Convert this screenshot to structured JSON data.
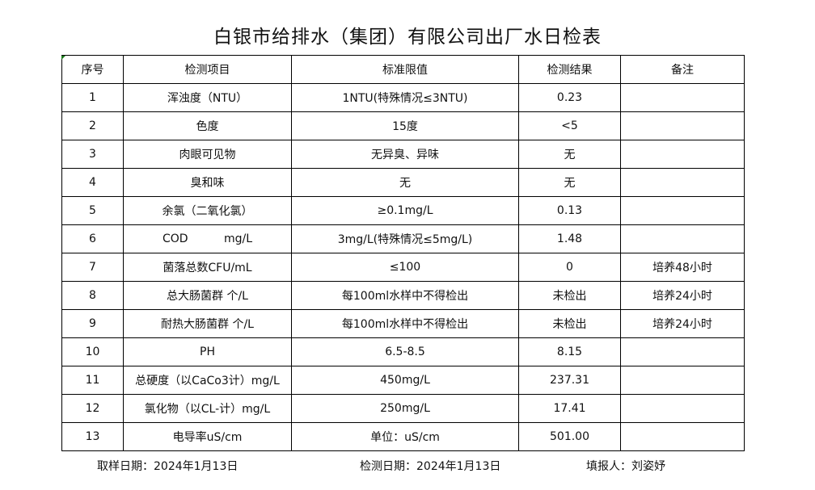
{
  "title": "白银市给排水（集团）有限公司出厂水日检表",
  "headers": [
    "序号",
    "检测项目",
    "标准限值",
    "检测结果",
    "备注"
  ],
  "rows": [
    [
      "1",
      "浑浊度（NTU）",
      "1NTU(特殊情况≤3NTU)",
      "0.23",
      ""
    ],
    [
      "2",
      "色度",
      "15度",
      "<5",
      ""
    ],
    [
      "3",
      "肉眼可见物",
      "无异臭、异味",
      "无",
      ""
    ],
    [
      "4",
      "臭和味",
      "无",
      "无",
      ""
    ],
    [
      "5",
      "余氯（二氧化氯）",
      "≥0.1mg/L",
      "0.13",
      ""
    ],
    [
      "6",
      "COD          mg/L",
      "3mg/L(特殊情况≤5mg/L)",
      "1.48",
      ""
    ],
    [
      "7",
      "菌落总数CFU/mL",
      "≤100",
      "0",
      "培养48小时"
    ],
    [
      "8",
      "总大肠菌群 个/L",
      "每100ml水样中不得检出",
      "未检出",
      "培养24小时"
    ],
    [
      "9",
      "耐热大肠菌群 个/L",
      "每100ml水样中不得检出",
      "未检出",
      "培养24小时"
    ],
    [
      "10",
      "PH",
      "6.5-8.5",
      "8.15",
      ""
    ],
    [
      "11",
      "总硬度（以CaCo3计）mg/L",
      "450mg/L",
      "237.31",
      ""
    ],
    [
      "12",
      "氯化物（以CL-计）mg/L",
      "250mg/L",
      "17.41",
      ""
    ],
    [
      "13",
      "电导率uS/cm",
      "单位：uS/cm",
      "501.00",
      ""
    ]
  ],
  "footer": {
    "sample_date": "取样日期：2024年1月13日",
    "test_date": "检测日期：2024年1月13日",
    "reporter": "填报人：刘姿妤"
  }
}
